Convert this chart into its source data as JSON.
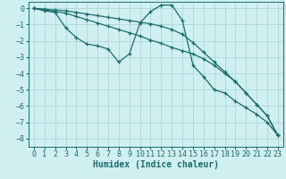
{
  "xlabel": "Humidex (Indice chaleur)",
  "bg_color": "#cff0f0",
  "grid_color": "#a8d8d8",
  "line_color": "#1a6b6b",
  "xlim": [
    -0.5,
    23.5
  ],
  "ylim": [
    -8.5,
    0.4
  ],
  "xticks": [
    0,
    1,
    2,
    3,
    4,
    5,
    6,
    7,
    8,
    9,
    10,
    11,
    12,
    13,
    14,
    15,
    16,
    17,
    18,
    19,
    20,
    21,
    22,
    23
  ],
  "yticks": [
    0,
    -1,
    -2,
    -3,
    -4,
    -5,
    -6,
    -7,
    -8
  ],
  "line1_x": [
    0,
    1,
    2,
    3,
    4,
    5,
    6,
    7,
    8,
    9,
    10,
    11,
    12,
    13,
    14,
    15,
    16,
    17,
    18,
    19,
    20,
    21,
    22,
    23
  ],
  "line1_y": [
    0,
    -0.15,
    -0.25,
    -1.2,
    -1.8,
    -2.2,
    -2.3,
    -2.5,
    -3.3,
    -2.8,
    -0.9,
    -0.2,
    0.2,
    0.2,
    -0.75,
    -3.5,
    -4.2,
    -5.0,
    -5.2,
    -5.7,
    -6.1,
    -6.5,
    -7.0,
    -7.8
  ],
  "line2_x": [
    0,
    1,
    2,
    3,
    4,
    5,
    6,
    7,
    8,
    9,
    10,
    11,
    12,
    13,
    14,
    15,
    16,
    17,
    18,
    19,
    20,
    21,
    22,
    23
  ],
  "line2_y": [
    0,
    -0.1,
    -0.2,
    -0.3,
    -0.5,
    -0.7,
    -0.9,
    -1.1,
    -1.3,
    -1.5,
    -1.7,
    -1.95,
    -2.15,
    -2.4,
    -2.6,
    -2.8,
    -3.1,
    -3.5,
    -4.0,
    -4.5,
    -5.2,
    -5.9,
    -6.6,
    -7.8
  ],
  "line3_x": [
    0,
    1,
    2,
    3,
    4,
    5,
    6,
    7,
    8,
    9,
    10,
    11,
    12,
    13,
    14,
    15,
    16,
    17,
    18,
    19,
    20,
    21,
    22,
    23
  ],
  "line3_y": [
    0,
    -0.05,
    -0.1,
    -0.15,
    -0.25,
    -0.35,
    -0.45,
    -0.55,
    -0.65,
    -0.75,
    -0.85,
    -0.95,
    -1.1,
    -1.3,
    -1.6,
    -2.1,
    -2.7,
    -3.3,
    -3.9,
    -4.5,
    -5.2,
    -5.9,
    -6.6,
    -7.8
  ],
  "xlabel_fontsize": 7,
  "tick_fontsize": 6
}
